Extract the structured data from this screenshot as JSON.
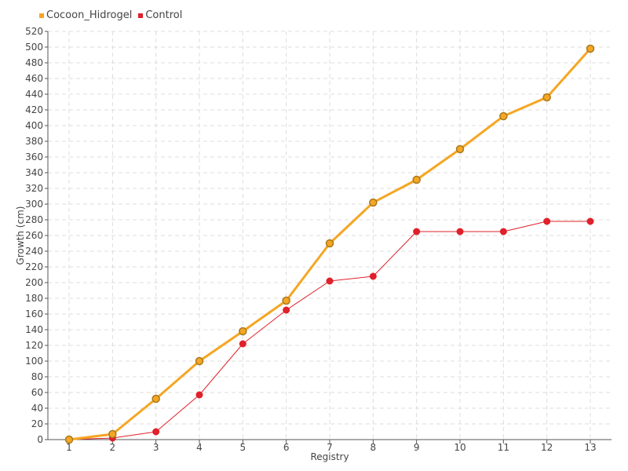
{
  "chart_data": {
    "type": "line",
    "xlabel": "Registry",
    "ylabel": "Growth (cm)",
    "categories": [
      "1",
      "2",
      "3",
      "4",
      "5",
      "6",
      "7",
      "8",
      "9",
      "10",
      "11",
      "12",
      "13"
    ],
    "ylim": [
      0,
      520
    ],
    "ytick_step": 20,
    "grid": true,
    "legend_position": "top-left",
    "series": [
      {
        "name": "Cocoon_Hidrogel",
        "color": "#f5a623",
        "values": [
          0,
          7,
          52,
          100,
          138,
          177,
          250,
          302,
          331,
          370,
          412,
          436,
          498
        ]
      },
      {
        "name": "Control",
        "color": "#e0202a",
        "values": [
          0,
          2,
          10,
          57,
          122,
          165,
          202,
          208,
          265,
          265,
          265,
          278,
          278
        ]
      }
    ]
  }
}
